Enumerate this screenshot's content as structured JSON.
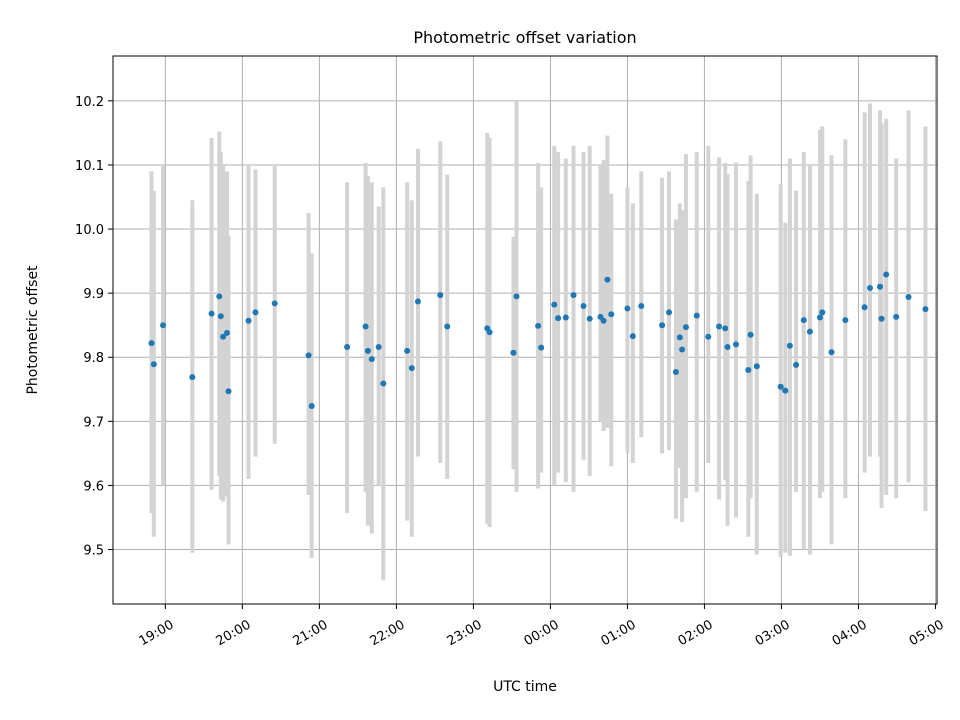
{
  "chart_data": {
    "type": "scatter",
    "title": "Photometric offset variation",
    "xlabel": "UTC time",
    "ylabel": "Photometric offset",
    "x_tick_labels": [
      "19:00",
      "20:00",
      "21:00",
      "22:00",
      "23:00",
      "00:00",
      "01:00",
      "02:00",
      "03:00",
      "04:00",
      "05:00"
    ],
    "y_tick_labels": [
      "9.5",
      "9.6",
      "9.7",
      "9.8",
      "9.9",
      "10.0",
      "10.1",
      "10.2"
    ],
    "x_ticks_hours": [
      19,
      20,
      21,
      22,
      23,
      24,
      25,
      26,
      27,
      28,
      29
    ],
    "y_ticks": [
      9.5,
      9.6,
      9.7,
      9.8,
      9.9,
      10.0,
      10.1,
      10.2
    ],
    "xlim_hours": [
      18.32,
      29.02
    ],
    "ylim": [
      9.415,
      10.27
    ],
    "grid": true,
    "point_color": "#1f77b4",
    "errorbar_color": "#d3d3d3",
    "series": [
      {
        "x_hours": [
          18.82,
          18.85,
          18.97,
          19.35,
          19.6,
          19.7,
          19.72,
          19.75,
          19.8,
          19.82,
          20.08,
          20.17,
          20.42,
          20.86,
          20.9,
          21.36,
          21.6,
          21.63,
          21.68,
          21.77,
          21.83,
          22.14,
          22.2,
          22.28,
          22.57,
          22.66,
          23.18,
          23.21,
          23.52,
          23.56,
          23.84,
          23.88,
          24.05,
          24.1,
          24.2,
          24.3,
          24.43,
          24.51,
          24.65,
          24.69,
          24.74,
          24.79,
          25.0,
          25.07,
          25.18,
          25.45,
          25.54,
          25.63,
          25.68,
          25.71,
          25.76,
          25.9,
          26.05,
          26.19,
          26.27,
          26.3,
          26.41,
          26.57,
          26.6,
          26.68,
          26.99,
          27.05,
          27.11,
          27.19,
          27.29,
          27.37,
          27.5,
          27.53,
          27.65,
          27.83,
          28.08,
          28.15,
          28.28,
          28.3,
          28.36,
          28.49,
          28.65,
          28.87
        ],
        "y": [
          9.822,
          9.789,
          9.85,
          9.769,
          9.868,
          9.895,
          9.864,
          9.832,
          9.838,
          9.747,
          9.857,
          9.87,
          9.884,
          9.803,
          9.724,
          9.816,
          9.848,
          9.81,
          9.797,
          9.816,
          9.759,
          9.81,
          9.783,
          9.887,
          9.897,
          9.848,
          9.845,
          9.839,
          9.807,
          9.895,
          9.849,
          9.815,
          9.882,
          9.861,
          9.862,
          9.897,
          9.88,
          9.86,
          9.863,
          9.857,
          9.921,
          9.867,
          9.876,
          9.833,
          9.88,
          9.85,
          9.87,
          9.777,
          9.831,
          9.812,
          9.847,
          9.865,
          9.832,
          9.848,
          9.845,
          9.816,
          9.82,
          9.78,
          9.835,
          9.786,
          9.754,
          9.748,
          9.818,
          9.788,
          9.858,
          9.84,
          9.862,
          9.87,
          9.808,
          9.858,
          9.878,
          9.908,
          9.91,
          9.86,
          9.929,
          9.863,
          9.894,
          9.875
        ],
        "ylow": [
          9.557,
          9.52,
          9.6,
          9.495,
          9.593,
          9.615,
          9.578,
          9.575,
          9.583,
          9.508,
          9.61,
          9.645,
          9.665,
          9.585,
          9.487,
          9.557,
          9.59,
          9.537,
          9.525,
          9.6,
          9.452,
          9.545,
          9.52,
          9.645,
          9.635,
          9.61,
          9.54,
          9.535,
          9.625,
          9.59,
          9.595,
          9.62,
          9.6,
          9.62,
          9.605,
          9.59,
          9.64,
          9.615,
          9.7,
          9.685,
          9.69,
          9.63,
          9.65,
          9.635,
          9.675,
          9.65,
          9.655,
          9.548,
          9.627,
          9.543,
          9.58,
          9.59,
          9.635,
          9.578,
          9.608,
          9.537,
          9.55,
          9.52,
          9.58,
          9.492,
          9.488,
          9.495,
          9.49,
          9.59,
          9.5,
          9.492,
          9.58,
          9.59,
          9.508,
          9.58,
          9.62,
          9.645,
          9.645,
          9.565,
          9.585,
          9.58,
          9.605,
          9.56
        ],
        "yhigh": [
          10.09,
          10.06,
          10.1,
          10.045,
          10.142,
          10.152,
          10.12,
          10.1,
          10.09,
          9.99,
          10.1,
          10.093,
          10.1,
          10.025,
          9.962,
          10.073,
          10.103,
          10.083,
          10.073,
          10.035,
          10.065,
          10.073,
          10.045,
          10.125,
          10.137,
          10.085,
          10.15,
          10.143,
          9.988,
          10.2,
          10.103,
          10.065,
          10.13,
          10.12,
          10.11,
          10.13,
          10.12,
          10.13,
          10.1,
          10.108,
          10.146,
          10.055,
          10.065,
          10.04,
          10.09,
          10.08,
          10.09,
          10.015,
          10.04,
          10.03,
          10.117,
          10.12,
          10.13,
          10.112,
          10.103,
          10.086,
          10.104,
          10.075,
          10.115,
          10.055,
          10.07,
          10.01,
          10.11,
          10.06,
          10.12,
          10.1,
          10.155,
          10.16,
          10.115,
          10.14,
          10.182,
          10.196,
          10.185,
          10.165,
          10.172,
          10.11,
          10.185,
          10.16
        ]
      }
    ]
  }
}
